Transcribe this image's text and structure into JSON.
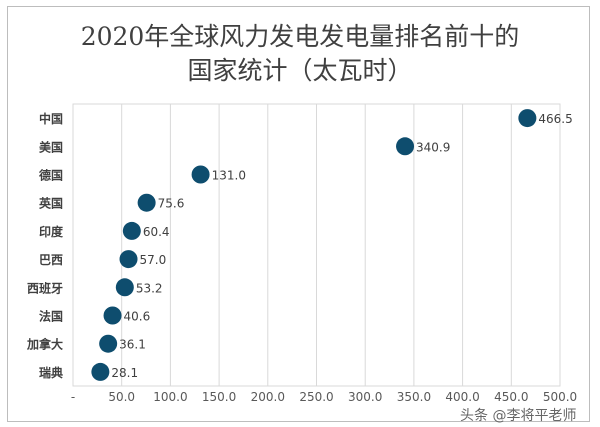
{
  "chart_data": {
    "type": "scatter",
    "title_line1": "2020年全球风力发电发电量排名前十的",
    "title_line2": "国家统计（太瓦时）",
    "categories": [
      "中国",
      "美国",
      "德国",
      "英国",
      "印度",
      "巴西",
      "西班牙",
      "法国",
      "加拿大",
      "瑞典"
    ],
    "values": [
      466.5,
      340.9,
      131.0,
      75.6,
      60.4,
      57.0,
      53.2,
      40.6,
      36.1,
      28.1
    ],
    "data_labels": [
      "466.5",
      "340.9",
      "131.0",
      "75.6",
      "60.4",
      "57.0",
      "53.2",
      "40.6",
      "36.1",
      "28.1"
    ],
    "x_ticks": [
      "-",
      "50.0",
      "100.0",
      "150.0",
      "200.0",
      "250.0",
      "300.0",
      "350.0",
      "400.0",
      "450.0",
      "500.0"
    ],
    "xlim": [
      0,
      500
    ],
    "grid": "vertical",
    "legend": "none",
    "marker_color": "#0e4d6e"
  },
  "watermark": "头条 @李将平老师"
}
